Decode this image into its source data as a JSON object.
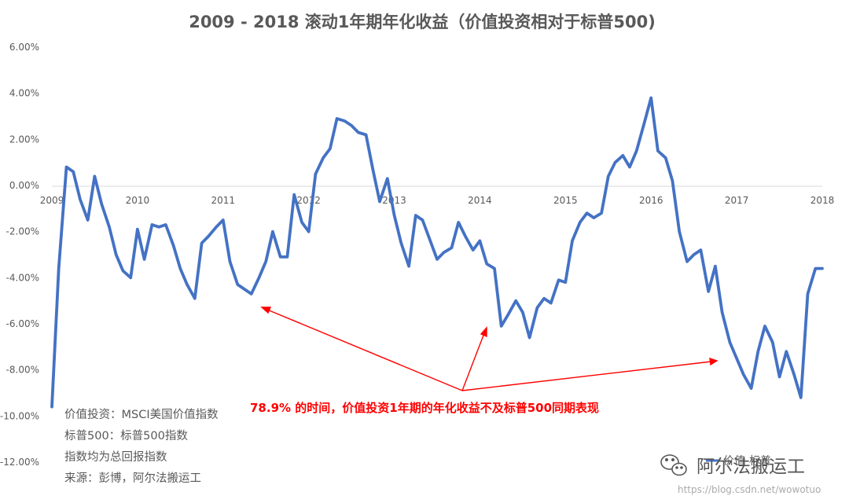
{
  "chart_data": {
    "type": "line",
    "title": "2009 - 2018 滚动1年期年化收益（价值投资相对于标普500)",
    "xlim": [
      2009,
      2018
    ],
    "ylim": [
      -12,
      6
    ],
    "yticks": [
      "6.00%",
      "4.00%",
      "2.00%",
      "0.00%",
      "-2.00%",
      "-4.00%",
      "-6.00%",
      "-8.00%",
      "-10.00%",
      "-12.00%"
    ],
    "xticks": [
      "2009",
      "2010",
      "2011",
      "2012",
      "2013",
      "2014",
      "2015",
      "2016",
      "2017",
      "2018"
    ],
    "series": [
      {
        "name": "价值-标普",
        "color": "#4472c4",
        "x": [
          2009.0,
          2009.08,
          2009.17,
          2009.25,
          2009.33,
          2009.42,
          2009.5,
          2009.58,
          2009.67,
          2009.75,
          2009.83,
          2009.92,
          2010.0,
          2010.08,
          2010.17,
          2010.25,
          2010.33,
          2010.42,
          2010.5,
          2010.58,
          2010.67,
          2010.75,
          2010.83,
          2010.92,
          2011.0,
          2011.08,
          2011.17,
          2011.25,
          2011.33,
          2011.42,
          2011.5,
          2011.58,
          2011.67,
          2011.75,
          2011.83,
          2011.92,
          2012.0,
          2012.08,
          2012.17,
          2012.25,
          2012.33,
          2012.42,
          2012.5,
          2012.58,
          2012.67,
          2012.75,
          2012.83,
          2012.92,
          2013.0,
          2013.08,
          2013.17,
          2013.25,
          2013.33,
          2013.42,
          2013.5,
          2013.58,
          2013.67,
          2013.75,
          2013.83,
          2013.92,
          2014.0,
          2014.08,
          2014.17,
          2014.25,
          2014.33,
          2014.42,
          2014.5,
          2014.58,
          2014.67,
          2014.75,
          2014.83,
          2014.92,
          2015.0,
          2015.08,
          2015.17,
          2015.25,
          2015.33,
          2015.42,
          2015.5,
          2015.58,
          2015.67,
          2015.75,
          2015.83,
          2015.92,
          2016.0,
          2016.08,
          2016.17,
          2016.25,
          2016.33,
          2016.42,
          2016.5,
          2016.58,
          2016.67,
          2016.75,
          2016.83,
          2016.92,
          2017.0,
          2017.08,
          2017.17,
          2017.25,
          2017.33,
          2017.42,
          2017.5,
          2017.58,
          2017.67,
          2017.75,
          2017.83,
          2017.92,
          2018.0
        ],
        "values": [
          -9.6,
          -3.6,
          0.8,
          0.6,
          -0.6,
          -1.5,
          0.4,
          -0.8,
          -1.8,
          -3.0,
          -3.7,
          -4.0,
          -1.9,
          -3.2,
          -1.7,
          -1.8,
          -1.7,
          -2.6,
          -3.6,
          -4.3,
          -4.9,
          -2.5,
          -2.2,
          -1.8,
          -1.5,
          -3.3,
          -4.3,
          -4.5,
          -4.7,
          -4.0,
          -3.3,
          -2.0,
          -3.1,
          -3.1,
          -0.4,
          -1.6,
          -2.0,
          0.5,
          1.2,
          1.6,
          2.9,
          2.8,
          2.6,
          2.3,
          2.2,
          0.7,
          -0.7,
          0.3,
          -1.3,
          -2.5,
          -3.5,
          -1.3,
          -1.5,
          -2.4,
          -3.2,
          -2.9,
          -2.7,
          -1.6,
          -2.2,
          -2.8,
          -2.4,
          -3.4,
          -3.6,
          -6.1,
          -5.6,
          -5.0,
          -5.5,
          -6.6,
          -5.3,
          -4.9,
          -5.1,
          -4.1,
          -4.2,
          -2.4,
          -1.6,
          -1.2,
          -1.4,
          -1.2,
          0.4,
          1.0,
          1.3,
          0.8,
          1.5,
          2.7,
          3.8,
          1.5,
          1.2,
          0.2,
          -2.0,
          -3.3,
          -3.0,
          -2.8,
          -4.6,
          -3.5,
          -5.5,
          -6.8,
          -7.5,
          -8.2,
          -8.8,
          -7.2,
          -6.1,
          -6.8,
          -8.3,
          -7.2,
          -8.2,
          -9.2,
          -4.7,
          -3.6,
          -3.6
        ]
      }
    ],
    "legend_position": "bottom-right",
    "annotation": "78.9% 的时间，价值投资1年期的年化收益不及标普500同期表现",
    "notes": [
      "价值投资：MSCI美国价值指数",
      "标普500：标普500指数",
      "指数均为总回报指数",
      "来源：彭博，阿尔法搬运工"
    ]
  },
  "watermark": {
    "name": "阿尔法搬运工",
    "url": "https://blog.csdn.net/wowotuo"
  },
  "colors": {
    "line": "#4472c4",
    "annotation": "#ff0000",
    "text": "#595959"
  }
}
